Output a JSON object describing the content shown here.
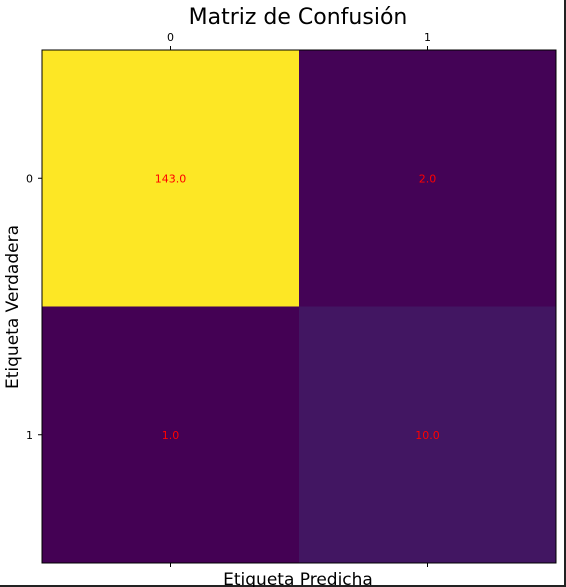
{
  "chart_data": {
    "type": "heatmap",
    "title": "Matriz de Confusión",
    "xlabel": "Etiqueta Predicha",
    "ylabel": "Etiqueta Verdadera",
    "x_categories": [
      "0",
      "1"
    ],
    "y_categories": [
      "0",
      "1"
    ],
    "values": [
      [
        143.0,
        2.0
      ],
      [
        1.0,
        10.0
      ]
    ],
    "value_labels": [
      [
        "143.0",
        "2.0"
      ],
      [
        "1.0",
        "10.0"
      ]
    ],
    "x_ticks_position": "top",
    "colormap": "viridis",
    "value_label_color": "#ff0000",
    "grid": false
  }
}
